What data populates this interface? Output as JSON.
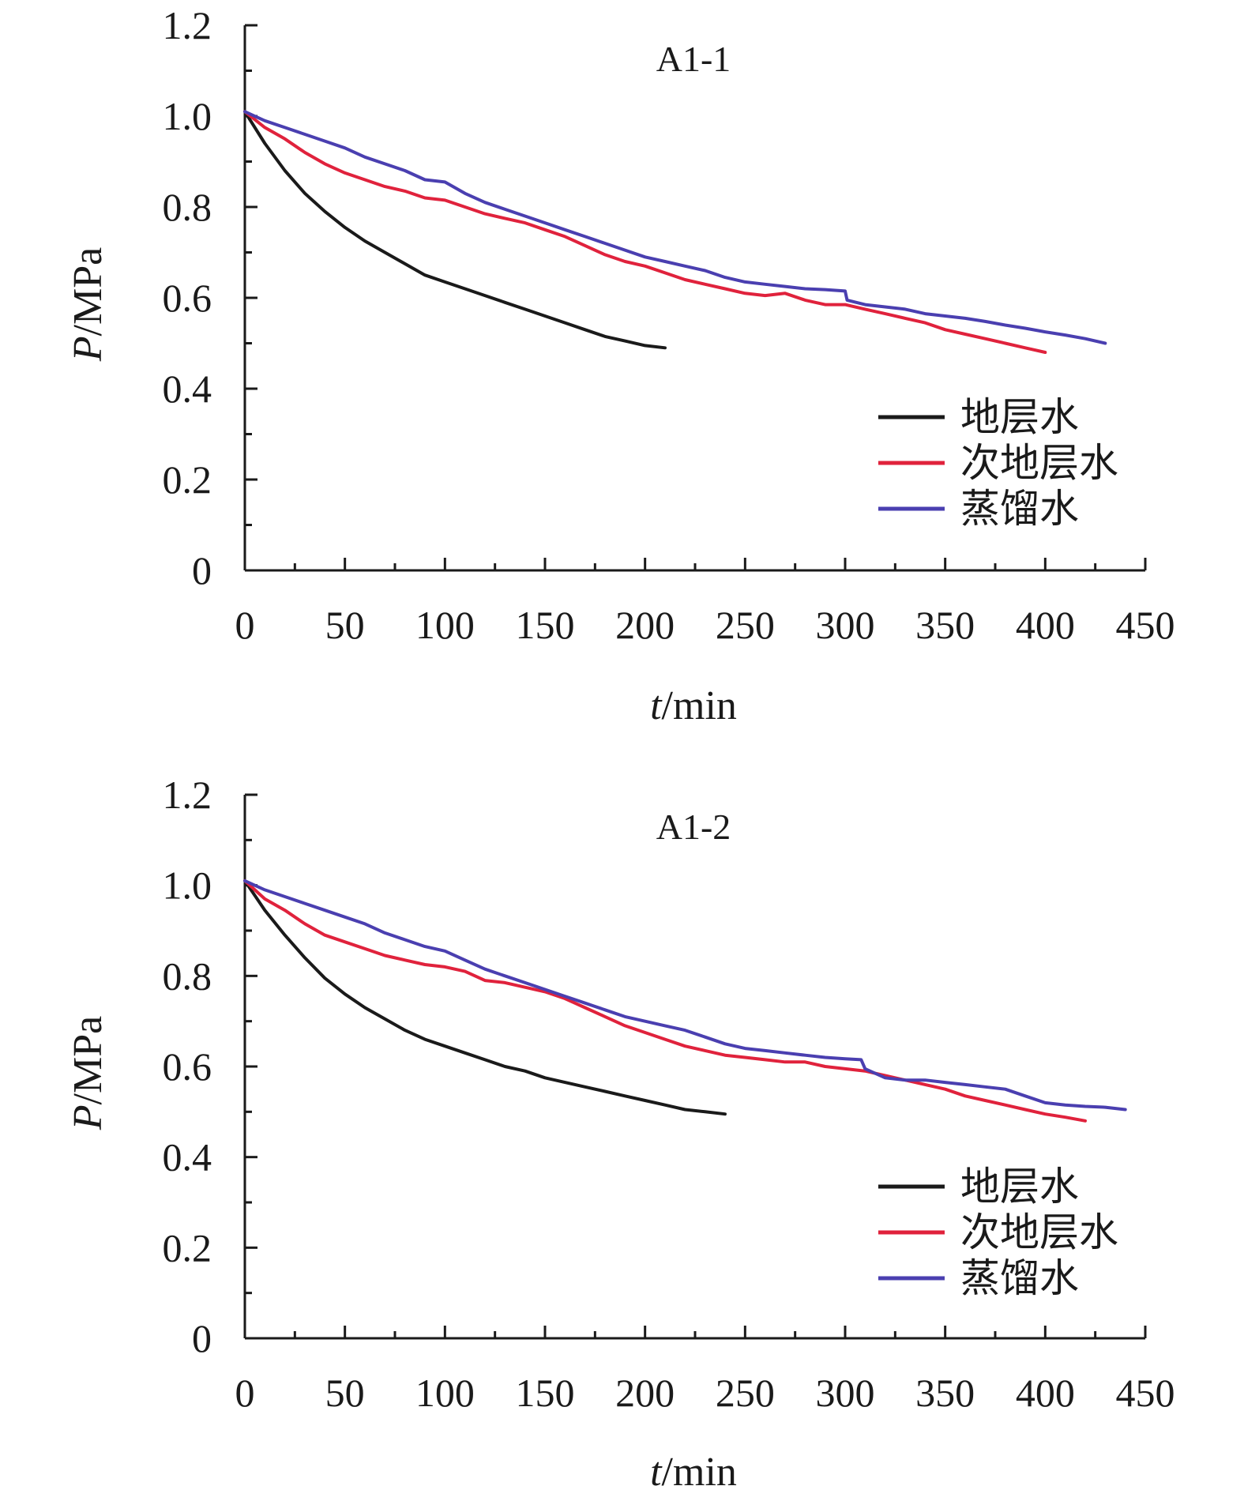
{
  "figure": {
    "colors": {
      "axis": "#1a1a1a",
      "series": [
        "#1a1a1a",
        "#e0223c",
        "#4a3fb0"
      ]
    }
  },
  "chart_data": [
    {
      "type": "line",
      "panel_label": "A1-1",
      "title": "",
      "xlabel_italic": "t",
      "xlabel_unit": "/min",
      "ylabel_italic": "P",
      "ylabel_unit": "/MPa",
      "xlim": [
        0,
        450
      ],
      "ylim": [
        0,
        1.2
      ],
      "x_ticks": [
        "0",
        "50",
        "100",
        "150",
        "200",
        "250",
        "300",
        "350",
        "400",
        "450"
      ],
      "y_ticks": [
        "0",
        "0.2",
        "0.4",
        "0.6",
        "0.8",
        "1.0",
        "1.2"
      ],
      "grid": false,
      "legend_position": "lower-right",
      "series": [
        {
          "name": "地层水",
          "color": "#1a1a1a",
          "x": [
            0,
            10,
            20,
            30,
            40,
            50,
            60,
            70,
            80,
            90,
            100,
            110,
            120,
            130,
            140,
            150,
            160,
            170,
            180,
            190,
            200,
            210
          ],
          "y": [
            1.01,
            0.94,
            0.88,
            0.83,
            0.79,
            0.755,
            0.725,
            0.7,
            0.675,
            0.65,
            0.635,
            0.62,
            0.605,
            0.59,
            0.575,
            0.56,
            0.545,
            0.53,
            0.515,
            0.505,
            0.495,
            0.49
          ]
        },
        {
          "name": "次地层水",
          "color": "#e0223c",
          "x": [
            0,
            10,
            20,
            30,
            40,
            50,
            60,
            70,
            80,
            90,
            100,
            110,
            120,
            130,
            140,
            150,
            160,
            170,
            180,
            190,
            200,
            210,
            220,
            230,
            240,
            250,
            260,
            270,
            280,
            290,
            300,
            310,
            320,
            330,
            340,
            350,
            360,
            370,
            380,
            390,
            400
          ],
          "y": [
            1.01,
            0.975,
            0.95,
            0.92,
            0.895,
            0.875,
            0.86,
            0.845,
            0.835,
            0.82,
            0.815,
            0.8,
            0.785,
            0.775,
            0.765,
            0.75,
            0.735,
            0.715,
            0.695,
            0.68,
            0.67,
            0.655,
            0.64,
            0.63,
            0.62,
            0.61,
            0.605,
            0.61,
            0.595,
            0.585,
            0.585,
            0.575,
            0.565,
            0.555,
            0.545,
            0.53,
            0.52,
            0.51,
            0.5,
            0.49,
            0.48
          ]
        },
        {
          "name": "蒸馏水",
          "color": "#4a3fb0",
          "x": [
            0,
            10,
            20,
            30,
            40,
            50,
            60,
            70,
            80,
            90,
            100,
            110,
            120,
            130,
            140,
            150,
            160,
            170,
            180,
            190,
            200,
            210,
            220,
            230,
            240,
            250,
            260,
            270,
            280,
            290,
            300,
            301,
            310,
            320,
            330,
            340,
            350,
            360,
            370,
            380,
            390,
            400,
            410,
            420,
            430
          ],
          "y": [
            1.01,
            0.99,
            0.975,
            0.96,
            0.945,
            0.93,
            0.91,
            0.895,
            0.88,
            0.86,
            0.855,
            0.83,
            0.81,
            0.795,
            0.78,
            0.765,
            0.75,
            0.735,
            0.72,
            0.705,
            0.69,
            0.68,
            0.67,
            0.66,
            0.645,
            0.635,
            0.63,
            0.625,
            0.62,
            0.618,
            0.615,
            0.595,
            0.585,
            0.58,
            0.575,
            0.565,
            0.56,
            0.555,
            0.548,
            0.54,
            0.533,
            0.525,
            0.518,
            0.51,
            0.5
          ]
        }
      ]
    },
    {
      "type": "line",
      "panel_label": "A1-2",
      "title": "",
      "xlabel_italic": "t",
      "xlabel_unit": "/min",
      "ylabel_italic": "P",
      "ylabel_unit": "/MPa",
      "xlim": [
        0,
        450
      ],
      "ylim": [
        0,
        1.2
      ],
      "x_ticks": [
        "0",
        "50",
        "100",
        "150",
        "200",
        "250",
        "300",
        "350",
        "400",
        "450"
      ],
      "y_ticks": [
        "0",
        "0.2",
        "0.4",
        "0.6",
        "0.8",
        "1.0",
        "1.2"
      ],
      "grid": false,
      "legend_position": "lower-right",
      "series": [
        {
          "name": "地层水",
          "color": "#1a1a1a",
          "x": [
            0,
            10,
            20,
            30,
            40,
            50,
            60,
            70,
            80,
            90,
            100,
            110,
            120,
            130,
            140,
            150,
            160,
            170,
            180,
            190,
            200,
            210,
            220,
            230,
            240
          ],
          "y": [
            1.01,
            0.945,
            0.89,
            0.84,
            0.795,
            0.76,
            0.73,
            0.705,
            0.68,
            0.66,
            0.645,
            0.63,
            0.615,
            0.6,
            0.59,
            0.575,
            0.565,
            0.555,
            0.545,
            0.535,
            0.525,
            0.515,
            0.505,
            0.5,
            0.495
          ]
        },
        {
          "name": "次地层水",
          "color": "#e0223c",
          "x": [
            0,
            10,
            20,
            30,
            40,
            50,
            60,
            70,
            80,
            90,
            100,
            110,
            120,
            130,
            140,
            150,
            160,
            170,
            180,
            190,
            200,
            210,
            220,
            230,
            240,
            250,
            260,
            270,
            280,
            290,
            300,
            310,
            320,
            330,
            340,
            350,
            360,
            370,
            380,
            390,
            400,
            410,
            420
          ],
          "y": [
            1.01,
            0.97,
            0.945,
            0.915,
            0.89,
            0.875,
            0.86,
            0.845,
            0.835,
            0.825,
            0.82,
            0.81,
            0.79,
            0.785,
            0.775,
            0.765,
            0.75,
            0.73,
            0.71,
            0.69,
            0.675,
            0.66,
            0.645,
            0.635,
            0.625,
            0.62,
            0.615,
            0.61,
            0.61,
            0.6,
            0.595,
            0.59,
            0.58,
            0.57,
            0.56,
            0.55,
            0.535,
            0.525,
            0.515,
            0.505,
            0.495,
            0.488,
            0.48
          ]
        },
        {
          "name": "蒸馏水",
          "color": "#4a3fb0",
          "x": [
            0,
            10,
            20,
            30,
            40,
            50,
            60,
            70,
            80,
            90,
            100,
            110,
            120,
            130,
            140,
            150,
            160,
            170,
            180,
            190,
            200,
            210,
            220,
            230,
            240,
            250,
            260,
            270,
            280,
            290,
            300,
            308,
            310,
            320,
            330,
            340,
            350,
            360,
            370,
            380,
            390,
            400,
            410,
            420,
            430,
            440
          ],
          "y": [
            1.01,
            0.99,
            0.975,
            0.96,
            0.945,
            0.93,
            0.915,
            0.895,
            0.88,
            0.865,
            0.855,
            0.835,
            0.815,
            0.8,
            0.785,
            0.77,
            0.755,
            0.74,
            0.725,
            0.71,
            0.7,
            0.69,
            0.68,
            0.665,
            0.65,
            0.64,
            0.635,
            0.63,
            0.625,
            0.62,
            0.617,
            0.615,
            0.595,
            0.575,
            0.57,
            0.57,
            0.565,
            0.56,
            0.555,
            0.55,
            0.535,
            0.52,
            0.515,
            0.512,
            0.51,
            0.505
          ]
        }
      ]
    }
  ]
}
